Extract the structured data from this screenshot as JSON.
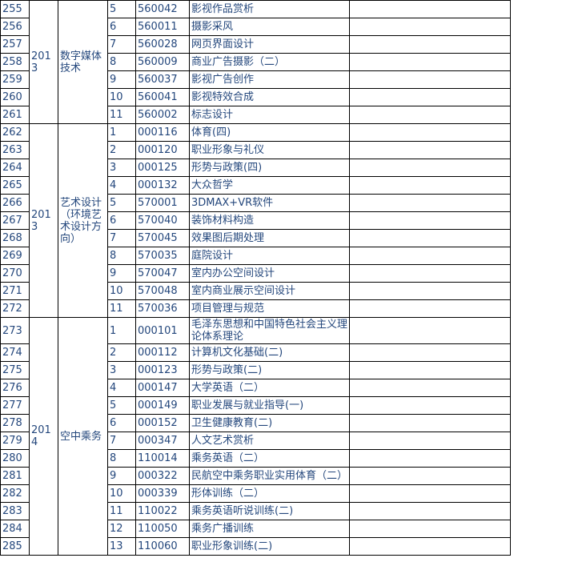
{
  "page": {
    "background_color": "#ffffff",
    "text_color": "#24477c",
    "border_color": "#000000"
  },
  "table": {
    "description": "course enrollment table rows 255-285",
    "columns": [
      "row-number",
      "year",
      "major",
      "course-seq",
      "course-code",
      "course-name",
      "blank"
    ],
    "groups": [
      {
        "year": "2013",
        "major": "数字媒体技术",
        "valign": "top",
        "rows": [
          {
            "no": "255",
            "seq": "5",
            "code": "560042",
            "name": "影视作品赏析",
            "blank": ""
          },
          {
            "no": "256",
            "seq": "6",
            "code": "560011",
            "name": "摄影采风",
            "blank": ""
          },
          {
            "no": "257",
            "seq": "7",
            "code": "560028",
            "name": "网页界面设计",
            "blank": ""
          },
          {
            "no": "258",
            "seq": "8",
            "code": "560009",
            "name": "商业广告摄影（二）",
            "blank": ""
          },
          {
            "no": "259",
            "seq": "9",
            "code": "560037",
            "name": "影视广告创作",
            "blank": ""
          },
          {
            "no": "260",
            "seq": "10",
            "code": "560041",
            "name": "影视特效合成",
            "blank": ""
          },
          {
            "no": "261",
            "seq": "11",
            "code": "560002",
            "name": "标志设计",
            "blank": ""
          }
        ]
      },
      {
        "year": "2013",
        "major": "艺术设计（环境艺术设计方向）",
        "valign": "middle",
        "rows": [
          {
            "no": "262",
            "seq": "1",
            "code": "000116",
            "name": "体育(四)",
            "blank": ""
          },
          {
            "no": "263",
            "seq": "2",
            "code": "000120",
            "name": "职业形象与礼仪",
            "blank": ""
          },
          {
            "no": "264",
            "seq": "3",
            "code": "000125",
            "name": "形势与政策(四)",
            "blank": ""
          },
          {
            "no": "265",
            "seq": "4",
            "code": "000132",
            "name": "大众哲学",
            "blank": ""
          },
          {
            "no": "266",
            "seq": "5",
            "code": "570001",
            "name": "3DMAX+VR软件",
            "blank": ""
          },
          {
            "no": "267",
            "seq": "6",
            "code": "570040",
            "name": "装饰材料构造",
            "blank": ""
          },
          {
            "no": "268",
            "seq": "7",
            "code": "570045",
            "name": "效果图后期处理",
            "blank": ""
          },
          {
            "no": "269",
            "seq": "8",
            "code": "570035",
            "name": "庭院设计",
            "blank": ""
          },
          {
            "no": "270",
            "seq": "9",
            "code": "570047",
            "name": "室内办公空间设计",
            "blank": ""
          },
          {
            "no": "271",
            "seq": "10",
            "code": "570048",
            "name": "室内商业展示空间设计",
            "blank": ""
          },
          {
            "no": "272",
            "seq": "11",
            "code": "570036",
            "name": "项目管理与规范",
            "blank": ""
          }
        ]
      },
      {
        "year": "2014",
        "major": "空中乘务",
        "valign": "middle",
        "rows": [
          {
            "no": "273",
            "seq": "1",
            "code": "000101",
            "name": "毛泽东思想和中国特色社会主义理论体系理论",
            "blank": ""
          },
          {
            "no": "274",
            "seq": "2",
            "code": "000112",
            "name": "计算机文化基础(二)",
            "blank": ""
          },
          {
            "no": "275",
            "seq": "3",
            "code": "000123",
            "name": "形势与政策(二)",
            "blank": ""
          },
          {
            "no": "276",
            "seq": "4",
            "code": "000147",
            "name": "大学英语（二）",
            "blank": ""
          },
          {
            "no": "277",
            "seq": "5",
            "code": "000149",
            "name": "职业发展与就业指导(一)",
            "blank": ""
          },
          {
            "no": "278",
            "seq": "6",
            "code": "000152",
            "name": "卫生健康教育(二)",
            "blank": ""
          },
          {
            "no": "279",
            "seq": "7",
            "code": "000347",
            "name": "人文艺术赏析",
            "blank": ""
          },
          {
            "no": "280",
            "seq": "8",
            "code": "110014",
            "name": "乘务英语（二）",
            "blank": ""
          },
          {
            "no": "281",
            "seq": "9",
            "code": "000322",
            "name": "民航空中乘务职业实用体育（二）",
            "blank": ""
          },
          {
            "no": "282",
            "seq": "10",
            "code": "000339",
            "name": "形体训练（二）",
            "blank": ""
          },
          {
            "no": "283",
            "seq": "11",
            "code": "110022",
            "name": "乘务英语听说训练(二)",
            "blank": ""
          },
          {
            "no": "284",
            "seq": "12",
            "code": "110050",
            "name": "乘务广播训练",
            "blank": ""
          },
          {
            "no": "285",
            "seq": "13",
            "code": "110060",
            "name": "职业形象训练(二)",
            "blank": ""
          }
        ]
      }
    ]
  }
}
